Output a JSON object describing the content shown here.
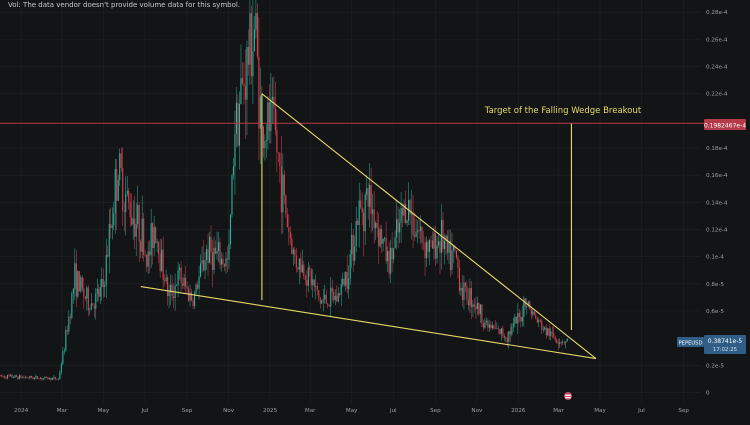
{
  "volume_note": "Vol: The data vendor doesn't provide volume data for this symbol.",
  "colors": {
    "background": "#131416",
    "grid": "#1f2124",
    "axis_text": "#9aa0a6",
    "wedge_lines": "#e6d96a",
    "target_line": "#b53a4a",
    "target_badge": "#b53a4a",
    "price_badge": "#2f5d86",
    "candle_up": "#2bb6a0",
    "candle_down": "#e0414f"
  },
  "chart_data": {
    "type": "candlestick",
    "symbol": "PEPEUSD",
    "title": "",
    "annotation": "Target of the Falling Wedge Breakout",
    "target_level": {
      "label": "0.1982467e-4",
      "value": 1.9825e-05
    },
    "current_price": {
      "label": "0.38741e-5",
      "countdown": "17:02:25",
      "value": 3.8741e-06
    },
    "y_axis": {
      "ylim": [
        -2.1e-06,
        2.89e-05
      ],
      "ticks": [
        {
          "value": 2.8e-05,
          "label": "0.28e-4"
        },
        {
          "value": 2.6e-05,
          "label": "0.26e-4"
        },
        {
          "value": 2.4e-05,
          "label": "0.24e-4"
        },
        {
          "value": 2.2e-05,
          "label": "0.22e-4"
        },
        {
          "value": 1.8e-05,
          "label": "0.18e-4"
        },
        {
          "value": 1.6e-05,
          "label": "0.16e-4"
        },
        {
          "value": 1.4e-05,
          "label": "0.14e-4"
        },
        {
          "value": 1.2e-05,
          "label": "0.12e-4"
        },
        {
          "value": 1e-05,
          "label": "0.1e-4"
        },
        {
          "value": 8e-06,
          "label": "0.8e-5"
        },
        {
          "value": 6e-06,
          "label": "0.6e-5"
        },
        {
          "value": 2e-06,
          "label": "0.2e-5"
        },
        {
          "value": 0,
          "label": "0"
        }
      ]
    },
    "x_axis": {
      "range": [
        "2023-12-01",
        "2026-09-25"
      ],
      "ticks": [
        {
          "date": "2024-01-01",
          "label": "2024"
        },
        {
          "date": "2024-03-01",
          "label": "Mar"
        },
        {
          "date": "2024-05-01",
          "label": "May"
        },
        {
          "date": "2024-07-01",
          "label": "Jul"
        },
        {
          "date": "2024-09-01",
          "label": "Sep"
        },
        {
          "date": "2024-11-01",
          "label": "Nov"
        },
        {
          "date": "2025-01-01",
          "label": "2025"
        },
        {
          "date": "2025-03-01",
          "label": "Mar"
        },
        {
          "date": "2025-05-01",
          "label": "May"
        },
        {
          "date": "2025-07-01",
          "label": "Jul"
        },
        {
          "date": "2025-09-01",
          "label": "Sep"
        },
        {
          "date": "2025-11-01",
          "label": "Nov"
        },
        {
          "date": "2026-01-01",
          "label": "2026"
        },
        {
          "date": "2026-03-01",
          "label": "Mar"
        },
        {
          "date": "2026-05-01",
          "label": "May"
        },
        {
          "date": "2026-07-01",
          "label": "Jul"
        },
        {
          "date": "2026-09-01",
          "label": "Sep"
        }
      ]
    },
    "price_series": [
      {
        "date": "2023-12-01",
        "close": 1.2e-06
      },
      {
        "date": "2024-01-15",
        "close": 1.1e-06
      },
      {
        "date": "2024-02-25",
        "close": 1e-06
      },
      {
        "date": "2024-03-05",
        "close": 3.5e-06
      },
      {
        "date": "2024-03-20",
        "close": 8.5e-06
      },
      {
        "date": "2024-04-10",
        "close": 6.5e-06
      },
      {
        "date": "2024-04-20",
        "close": 6.8e-06
      },
      {
        "date": "2024-05-01",
        "close": 7.8e-06
      },
      {
        "date": "2024-05-22",
        "close": 1.65e-05
      },
      {
        "date": "2024-06-05",
        "close": 1.4e-05
      },
      {
        "date": "2024-06-25",
        "close": 1.2e-05
      },
      {
        "date": "2024-07-05",
        "close": 9.5e-06
      },
      {
        "date": "2024-07-15",
        "close": 1.25e-05
      },
      {
        "date": "2024-08-05",
        "close": 7e-06
      },
      {
        "date": "2024-08-20",
        "close": 8.5e-06
      },
      {
        "date": "2024-09-10",
        "close": 6.8e-06
      },
      {
        "date": "2024-09-30",
        "close": 1.05e-05
      },
      {
        "date": "2024-10-20",
        "close": 9.8e-06
      },
      {
        "date": "2024-11-01",
        "close": 9.5e-06
      },
      {
        "date": "2024-11-10",
        "close": 2e-05
      },
      {
        "date": "2024-11-20",
        "close": 2.2e-05
      },
      {
        "date": "2024-12-05",
        "close": 2.6e-05
      },
      {
        "date": "2024-12-10",
        "close": 2.7e-05
      },
      {
        "date": "2024-12-20",
        "close": 1.9e-05
      },
      {
        "date": "2025-01-05",
        "close": 2e-05
      },
      {
        "date": "2025-01-25",
        "close": 1.3e-05
      },
      {
        "date": "2025-02-05",
        "close": 1e-05
      },
      {
        "date": "2025-03-01",
        "close": 8.5e-06
      },
      {
        "date": "2025-03-15",
        "close": 6.7e-06
      },
      {
        "date": "2025-04-10",
        "close": 7e-06
      },
      {
        "date": "2025-04-25",
        "close": 9e-06
      },
      {
        "date": "2025-05-10",
        "close": 1.3e-05
      },
      {
        "date": "2025-05-25",
        "close": 1.45e-05
      },
      {
        "date": "2025-06-10",
        "close": 1.2e-05
      },
      {
        "date": "2025-06-25",
        "close": 9.5e-06
      },
      {
        "date": "2025-07-10",
        "close": 1.2e-05
      },
      {
        "date": "2025-07-20",
        "close": 1.4e-05
      },
      {
        "date": "2025-08-05",
        "close": 1.2e-05
      },
      {
        "date": "2025-08-25",
        "close": 1.05e-05
      },
      {
        "date": "2025-09-10",
        "close": 1.15e-05
      },
      {
        "date": "2025-09-20",
        "close": 9.8e-06
      },
      {
        "date": "2025-10-01",
        "close": 1e-05
      },
      {
        "date": "2025-10-10",
        "close": 7.5e-06
      },
      {
        "date": "2025-10-25",
        "close": 7e-06
      },
      {
        "date": "2025-11-15",
        "close": 5e-06
      },
      {
        "date": "2025-12-01",
        "close": 4.5e-06
      },
      {
        "date": "2025-12-15",
        "close": 4.2e-06
      },
      {
        "date": "2026-01-05",
        "close": 5.6e-06
      },
      {
        "date": "2026-01-10",
        "close": 7e-06
      },
      {
        "date": "2026-01-25",
        "close": 5.5e-06
      },
      {
        "date": "2026-02-10",
        "close": 4.5e-06
      },
      {
        "date": "2026-02-25",
        "close": 4e-06
      },
      {
        "date": "2026-03-10",
        "close": 3.8e-06
      },
      {
        "date": "2026-03-15",
        "close": 3.9e-06
      }
    ],
    "wedge": {
      "upper_line": [
        {
          "date": "2024-12-20",
          "value": 2.2e-05
        },
        {
          "date": "2026-04-25",
          "value": 2.5e-06
        }
      ],
      "lower_line": [
        {
          "date": "2024-06-25",
          "value": 7.8e-06
        },
        {
          "date": "2026-04-25",
          "value": 2.5e-06
        }
      ],
      "height_marker": [
        {
          "date": "2024-12-20",
          "value": 2.2e-05
        },
        {
          "date": "2024-12-20",
          "value": 6.8e-06
        }
      ],
      "target_projection": [
        {
          "date": "2026-03-20",
          "value": 4.6e-06
        },
        {
          "date": "2026-03-20",
          "value": 1.98e-05
        }
      ]
    }
  }
}
